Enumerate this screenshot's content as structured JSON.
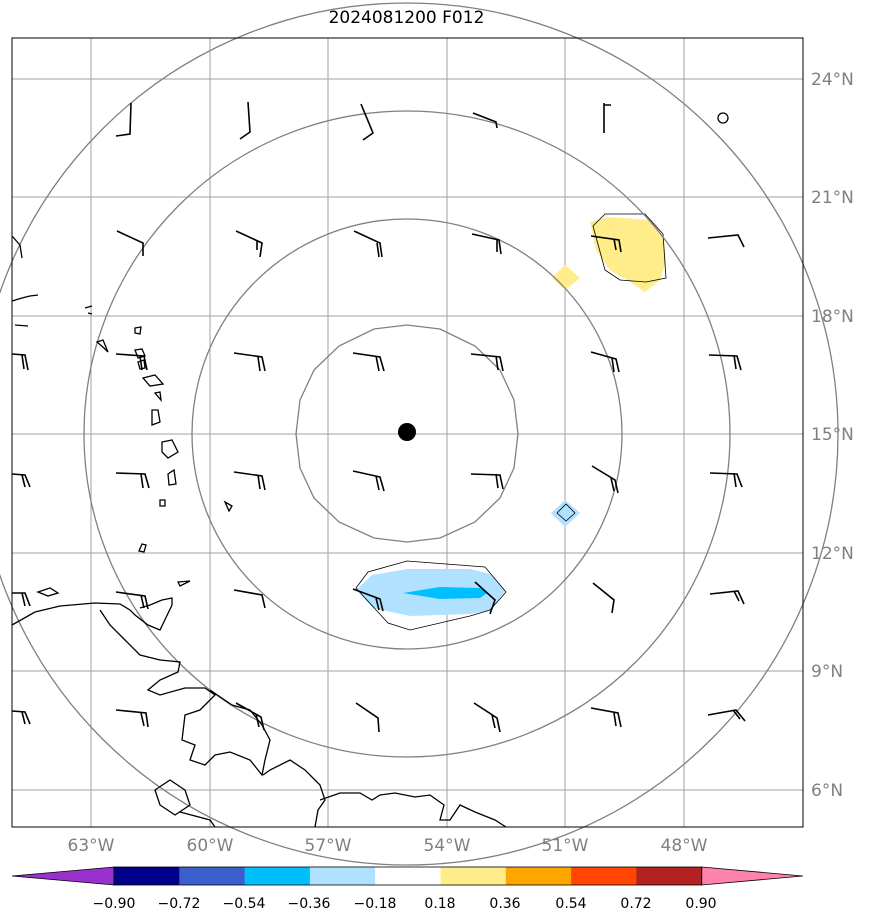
{
  "title": "2024081200 F012",
  "map": {
    "lon_labels": [
      "63°W",
      "60°W",
      "57°W",
      "54°W",
      "51°W",
      "48°W"
    ],
    "lat_labels": [
      "24°N",
      "21°N",
      "18°N",
      "15°N",
      "12°N",
      "9°N",
      "6°N"
    ],
    "center_marker": "storm-center"
  },
  "colorbar": {
    "tick_labels": [
      "−0.90",
      "−0.72",
      "−0.54",
      "−0.36",
      "−0.18",
      "0.18",
      "0.36",
      "0.54",
      "0.72",
      "0.90"
    ],
    "colors": [
      "#9932cc",
      "#00008b",
      "#3a5fcd",
      "#00bfff",
      "#b0e2ff",
      "#ffffff",
      "#ffec8b",
      "#ffa500",
      "#ff4500",
      "#b22222",
      "#ff82ab"
    ]
  }
}
